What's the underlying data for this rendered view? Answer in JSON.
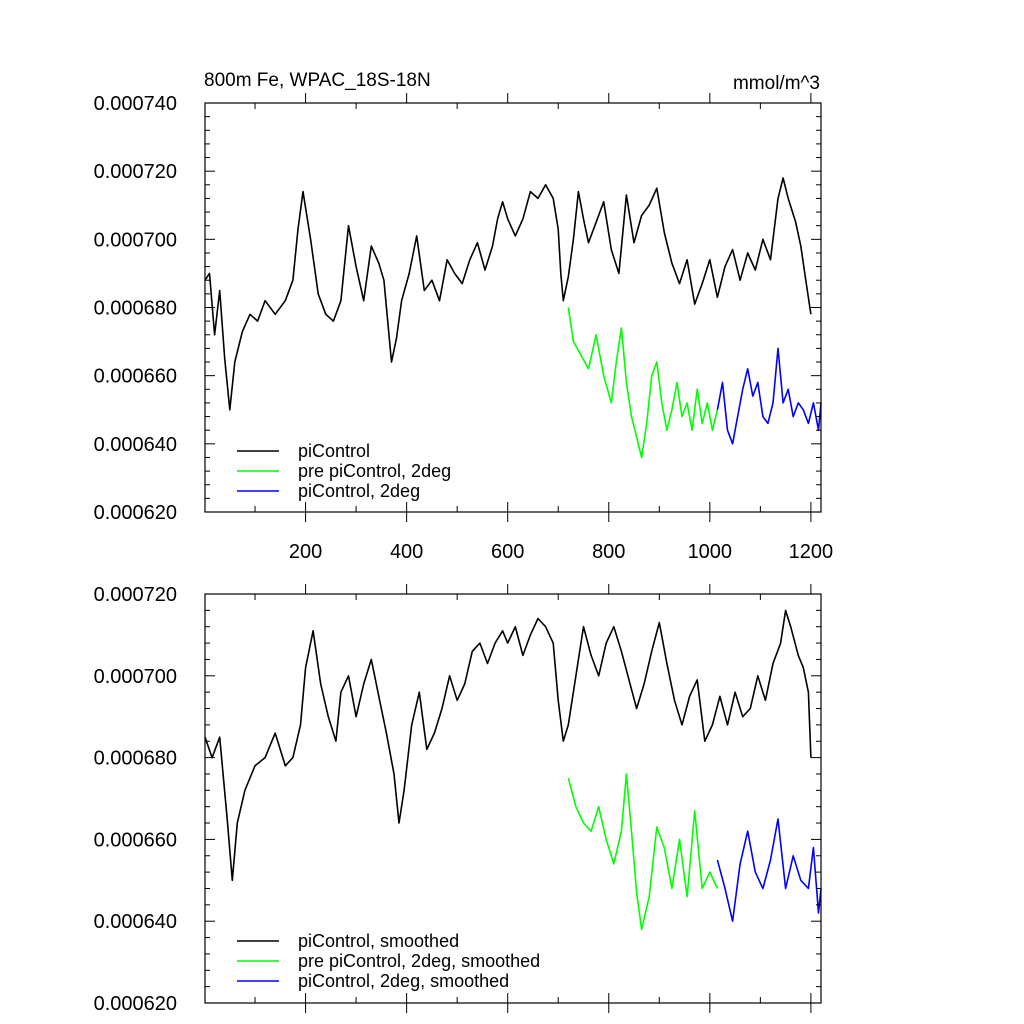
{
  "chart_data": [
    {
      "type": "line",
      "title": "800m Fe, WPAC_18S-18N",
      "units": "mmol/m^3",
      "xlim": [
        1,
        1220
      ],
      "ylim": [
        0.00062,
        0.00074
      ],
      "x_ticks": [
        200,
        400,
        600,
        800,
        1000,
        1200
      ],
      "x_tick_labels": [
        "200",
        "400",
        "600",
        "800",
        "1000",
        "1200"
      ],
      "y_ticks": [
        0.00062,
        0.00064,
        0.00066,
        0.00068,
        0.0007,
        0.00072,
        0.00074
      ],
      "y_tick_labels": [
        "0.000620",
        "0.000640",
        "0.000660",
        "0.000680",
        "0.000700",
        "0.000720",
        "0.000740"
      ],
      "series": [
        {
          "name": "piControl",
          "color": "#000000",
          "x": [
            1,
            10,
            20,
            30,
            40,
            50,
            60,
            75,
            90,
            105,
            120,
            140,
            160,
            175,
            185,
            195,
            210,
            225,
            240,
            255,
            270,
            285,
            300,
            315,
            330,
            345,
            355,
            370,
            380,
            390,
            405,
            420,
            435,
            450,
            465,
            480,
            495,
            510,
            525,
            540,
            555,
            570,
            580,
            590,
            600,
            615,
            630,
            645,
            660,
            675,
            690,
            700,
            705,
            710,
            720,
            730,
            740,
            750,
            760,
            775,
            790,
            805,
            820,
            835,
            850,
            865,
            880,
            895,
            910,
            925,
            940,
            955,
            970,
            985,
            1000,
            1015,
            1030,
            1045,
            1060,
            1075,
            1090,
            1105,
            1120,
            1135,
            1145,
            1155,
            1170,
            1180,
            1190,
            1200
          ],
          "values": [
            0.000688,
            0.00069,
            0.000672,
            0.000685,
            0.000665,
            0.00065,
            0.000664,
            0.000673,
            0.000678,
            0.000676,
            0.000682,
            0.000678,
            0.000682,
            0.000688,
            0.000703,
            0.000714,
            0.0007,
            0.000684,
            0.000678,
            0.000676,
            0.000682,
            0.000704,
            0.000692,
            0.000682,
            0.000698,
            0.000693,
            0.000688,
            0.000664,
            0.000671,
            0.000682,
            0.00069,
            0.000701,
            0.000685,
            0.000688,
            0.000682,
            0.000694,
            0.00069,
            0.000687,
            0.000694,
            0.000699,
            0.000691,
            0.000698,
            0.000706,
            0.000711,
            0.000706,
            0.000701,
            0.000706,
            0.000714,
            0.000712,
            0.000716,
            0.000712,
            0.000703,
            0.00069,
            0.000682,
            0.000689,
            0.0007,
            0.000714,
            0.000706,
            0.000699,
            0.000705,
            0.000711,
            0.000697,
            0.00069,
            0.000713,
            0.000699,
            0.000707,
            0.00071,
            0.000715,
            0.000702,
            0.000693,
            0.000687,
            0.000694,
            0.000681,
            0.000687,
            0.000694,
            0.000683,
            0.000692,
            0.000697,
            0.000688,
            0.000696,
            0.000691,
            0.0007,
            0.000694,
            0.000712,
            0.000718,
            0.000712,
            0.000705,
            0.000698,
            0.000688,
            0.000678
          ]
        },
        {
          "name": "pre piControl, 2deg",
          "color": "#00ff00",
          "x": [
            720,
            730,
            745,
            760,
            775,
            790,
            805,
            815,
            825,
            835,
            845,
            855,
            865,
            875,
            885,
            895,
            905,
            915,
            925,
            935,
            945,
            955,
            965,
            975,
            985,
            995,
            1005,
            1015
          ],
          "values": [
            0.00068,
            0.00067,
            0.000666,
            0.000662,
            0.000672,
            0.00066,
            0.000652,
            0.000664,
            0.000674,
            0.000658,
            0.000648,
            0.000642,
            0.000636,
            0.000646,
            0.00066,
            0.000664,
            0.000652,
            0.000644,
            0.00065,
            0.000658,
            0.000648,
            0.000652,
            0.000644,
            0.000656,
            0.000646,
            0.000652,
            0.000644,
            0.00065
          ]
        },
        {
          "name": "piControl, 2deg",
          "color": "#0000ff",
          "x": [
            1015,
            1025,
            1035,
            1045,
            1055,
            1065,
            1075,
            1085,
            1095,
            1105,
            1115,
            1125,
            1135,
            1145,
            1155,
            1165,
            1175,
            1185,
            1195,
            1205,
            1215,
            1220
          ],
          "values": [
            0.00065,
            0.000658,
            0.000644,
            0.00064,
            0.000648,
            0.000656,
            0.000662,
            0.000654,
            0.000658,
            0.000648,
            0.000646,
            0.000652,
            0.000668,
            0.000652,
            0.000656,
            0.000648,
            0.000652,
            0.00065,
            0.000646,
            0.000652,
            0.000644,
            0.000652
          ]
        }
      ],
      "legend": {
        "position": "bottom-left",
        "entries": [
          "piControl",
          "pre piControl, 2deg",
          "piControl, 2deg"
        ]
      }
    },
    {
      "type": "line",
      "title": "",
      "xlim": [
        1,
        1220
      ],
      "ylim": [
        0.00062,
        0.00072
      ],
      "y_ticks": [
        0.00062,
        0.00064,
        0.00066,
        0.00068,
        0.0007,
        0.00072
      ],
      "y_tick_labels": [
        "0.000620",
        "0.000640",
        "0.000660",
        "0.000680",
        "0.000700",
        "0.000720"
      ],
      "series": [
        {
          "name": "piControl, smoothed",
          "color": "#000000",
          "x": [
            1,
            15,
            30,
            45,
            55,
            65,
            80,
            100,
            120,
            140,
            160,
            175,
            190,
            200,
            215,
            230,
            245,
            260,
            270,
            285,
            300,
            315,
            330,
            345,
            360,
            375,
            385,
            395,
            410,
            425,
            440,
            455,
            470,
            485,
            500,
            515,
            530,
            545,
            560,
            575,
            590,
            600,
            615,
            630,
            645,
            660,
            675,
            690,
            700,
            710,
            720,
            735,
            750,
            765,
            780,
            795,
            810,
            825,
            840,
            855,
            870,
            885,
            900,
            915,
            930,
            945,
            960,
            975,
            990,
            1005,
            1020,
            1035,
            1050,
            1065,
            1080,
            1095,
            1110,
            1125,
            1140,
            1150,
            1160,
            1175,
            1185,
            1195,
            1200
          ],
          "values": [
            0.000685,
            0.00068,
            0.000685,
            0.000665,
            0.00065,
            0.000664,
            0.000672,
            0.000678,
            0.00068,
            0.000686,
            0.000678,
            0.00068,
            0.000688,
            0.000702,
            0.000711,
            0.000698,
            0.00069,
            0.000684,
            0.000696,
            0.0007,
            0.00069,
            0.000698,
            0.000704,
            0.000695,
            0.000686,
            0.000676,
            0.000664,
            0.000672,
            0.000688,
            0.000696,
            0.000682,
            0.000686,
            0.000692,
            0.0007,
            0.000694,
            0.000698,
            0.000706,
            0.000708,
            0.000703,
            0.000708,
            0.000711,
            0.000708,
            0.000712,
            0.000705,
            0.00071,
            0.000714,
            0.000712,
            0.000708,
            0.000694,
            0.000684,
            0.000688,
            0.0007,
            0.000712,
            0.000705,
            0.0007,
            0.000708,
            0.000712,
            0.000706,
            0.000699,
            0.000692,
            0.000698,
            0.000706,
            0.000713,
            0.000703,
            0.000694,
            0.000688,
            0.000695,
            0.000699,
            0.000684,
            0.000688,
            0.000695,
            0.000688,
            0.000696,
            0.00069,
            0.000692,
            0.0007,
            0.000694,
            0.000703,
            0.000708,
            0.000716,
            0.000712,
            0.000705,
            0.000702,
            0.000696,
            0.00068
          ]
        },
        {
          "name": "pre piControl, 2deg, smoothed",
          "color": "#00ff00",
          "x": [
            720,
            735,
            750,
            765,
            780,
            795,
            810,
            825,
            835,
            845,
            855,
            865,
            880,
            895,
            910,
            925,
            940,
            955,
            970,
            985,
            1000,
            1015
          ],
          "values": [
            0.000675,
            0.000668,
            0.000664,
            0.000662,
            0.000668,
            0.00066,
            0.000654,
            0.000662,
            0.000676,
            0.000662,
            0.000647,
            0.000638,
            0.000646,
            0.000663,
            0.000658,
            0.000648,
            0.00066,
            0.000646,
            0.000667,
            0.000648,
            0.000652,
            0.000648
          ]
        },
        {
          "name": "piControl, 2deg, smoothed",
          "color": "#0000ff",
          "x": [
            1015,
            1030,
            1045,
            1060,
            1075,
            1090,
            1105,
            1120,
            1135,
            1150,
            1165,
            1180,
            1195,
            1205,
            1215,
            1220
          ],
          "values": [
            0.000655,
            0.000648,
            0.00064,
            0.000654,
            0.000662,
            0.000652,
            0.000648,
            0.000655,
            0.000665,
            0.000648,
            0.000656,
            0.00065,
            0.000648,
            0.000658,
            0.000642,
            0.000648
          ]
        }
      ],
      "legend": {
        "position": "bottom-left",
        "entries": [
          "piControl, smoothed",
          "pre piControl, 2deg, smoothed",
          "piControl, 2deg, smoothed"
        ]
      }
    }
  ]
}
